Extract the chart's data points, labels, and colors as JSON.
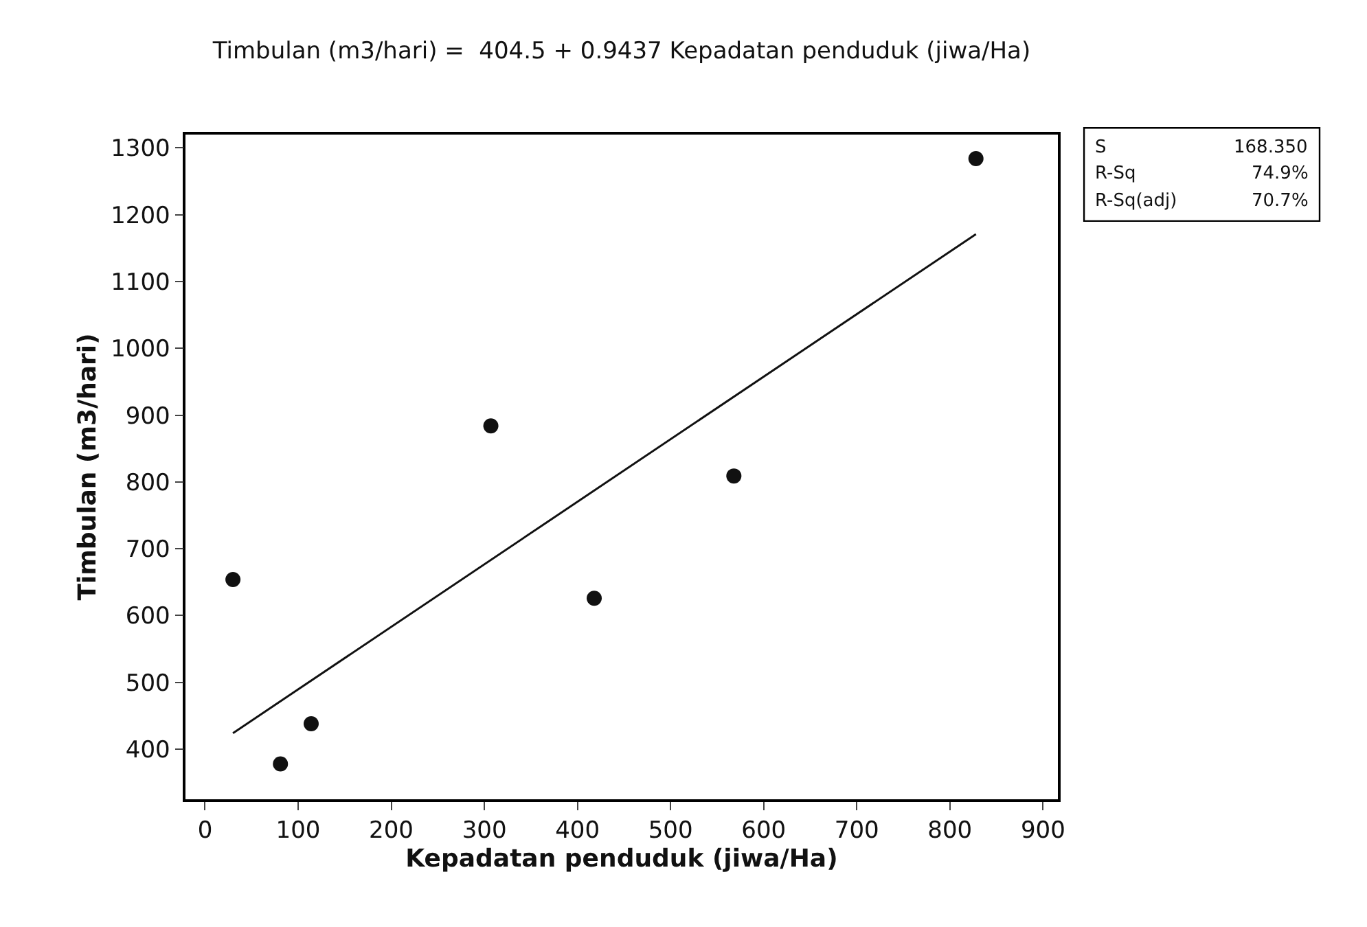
{
  "chart_data": {
    "type": "scatter",
    "title": "Timbulan (m3/hari) =  404.5 + 0.9437 Kepadatan penduduk (jiwa/Ha)",
    "xlabel": "Kepadatan penduduk (jiwa/Ha)",
    "ylabel": "Timbulan (m3/hari)",
    "series": [
      {
        "color": "#111111",
        "marker": "circle",
        "x": [
          30,
          81,
          114,
          307,
          418,
          568,
          828
        ],
        "values": [
          654,
          378,
          438,
          884,
          626,
          809,
          1284
        ]
      },
      {
        "type": "line",
        "color": "#111111",
        "marker": "none",
        "line_style": "solid",
        "x": [
          30,
          828
        ],
        "values": [
          424,
          1171
        ]
      }
    ],
    "xlim": [
      -21,
      916
    ],
    "xticks": [
      0,
      100,
      200,
      300,
      400,
      500,
      600,
      700,
      800,
      900
    ],
    "ylim": [
      325,
      1320
    ],
    "yticks": [
      400,
      500,
      600,
      700,
      800,
      900,
      1000,
      1100,
      1200,
      1300
    ],
    "annotations": [
      "S",
      "168.350",
      "R-Sq",
      "74.9%",
      "R-Sq(adj)",
      "70.7%"
    ]
  }
}
